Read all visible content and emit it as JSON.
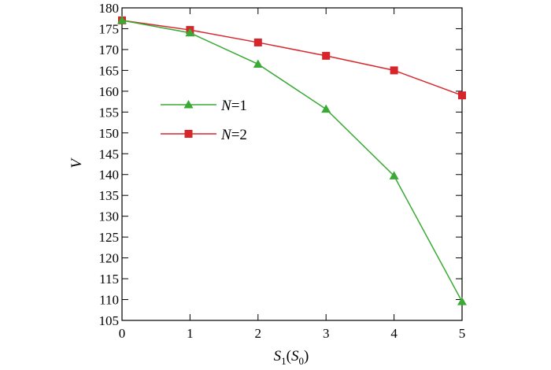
{
  "chart_data": {
    "type": "line",
    "title": "",
    "xlabel": {
      "main": "S",
      "sub": "1",
      "paren_main": "S",
      "paren_sub": "0"
    },
    "ylabel": "V",
    "x": [
      0,
      1,
      2,
      3,
      4,
      5
    ],
    "xlim": [
      0,
      5
    ],
    "ylim": [
      105,
      180
    ],
    "xticks": [
      0,
      1,
      2,
      3,
      4,
      5
    ],
    "yticks": [
      105,
      110,
      115,
      120,
      125,
      130,
      135,
      140,
      145,
      150,
      155,
      160,
      165,
      170,
      175,
      180
    ],
    "grid": false,
    "legend_position": "center-left",
    "series": [
      {
        "name_var": "N",
        "name_value": "=1",
        "color": "#3aaa35",
        "marker": "triangle",
        "values": [
          177,
          174,
          166.5,
          155.7,
          139.7,
          109.5
        ]
      },
      {
        "name_var": "N",
        "name_value": "=2",
        "color": "#d7262b",
        "marker": "square",
        "values": [
          177,
          174.7,
          171.7,
          168.5,
          165,
          159
        ]
      }
    ]
  }
}
